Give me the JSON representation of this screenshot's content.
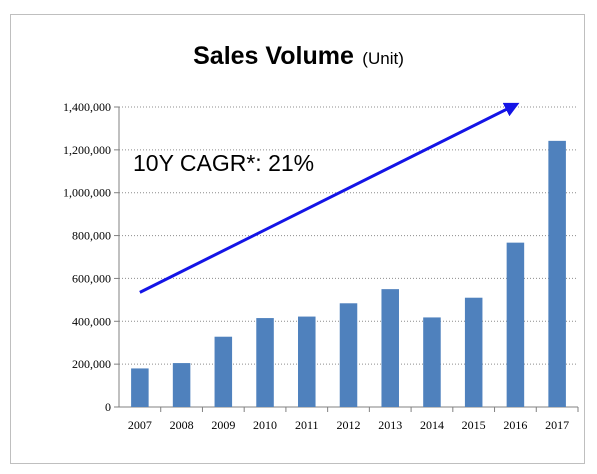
{
  "chart_data": {
    "type": "bar",
    "title": "Sales Volume",
    "title_unit": "(Unit)",
    "categories": [
      "2007",
      "2008",
      "2009",
      "2010",
      "2011",
      "2012",
      "2013",
      "2014",
      "2015",
      "2016",
      "2017"
    ],
    "values": [
      180000,
      205000,
      328000,
      415000,
      422000,
      484000,
      550000,
      418000,
      510000,
      767000,
      1242000
    ],
    "ylim": [
      0,
      1400000
    ],
    "y_ticks": [
      0,
      200000,
      400000,
      600000,
      800000,
      1000000,
      1200000,
      1400000
    ],
    "y_tick_labels": [
      "0",
      "200,000",
      "400,000",
      "600,000",
      "800,000",
      "1,000,000",
      "1,200,000",
      "1,400,000"
    ],
    "grid": "horizontal dotted",
    "bar_color": "#4f81bd",
    "annotation": {
      "text": "10Y CAGR*: 21%",
      "arrow_color": "#1414e6",
      "arrow_start": {
        "category": "2007",
        "value": 535000
      },
      "arrow_end": {
        "category": "2016",
        "value": 1410000
      }
    }
  }
}
